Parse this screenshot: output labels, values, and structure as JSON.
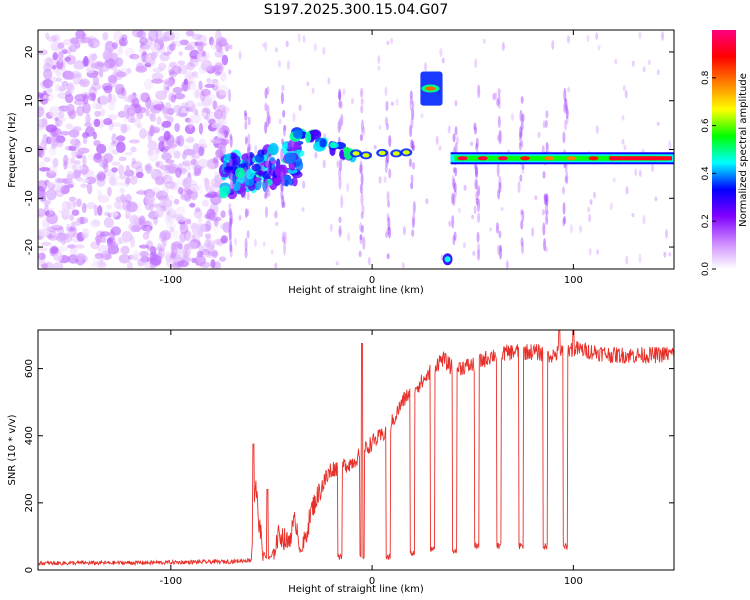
{
  "title": "S197.2025.300.15.04.G07",
  "chart_data": [
    {
      "type": "heatmap",
      "panel": "top",
      "title": "S197.2025.300.15.04.G07",
      "xlabel": "Height of straight line (km)",
      "ylabel": "Frequency (Hz)",
      "xlim": [
        -166,
        150
      ],
      "ylim": [
        -24.5,
        24.5
      ],
      "x_ticks": [
        -100,
        0,
        100
      ],
      "y_ticks": [
        -20,
        -10,
        0,
        10,
        20
      ],
      "colorbar": {
        "label": "Normalized spectral amplitude",
        "range": [
          0,
          1
        ],
        "ticks": [
          "0.0",
          "0.2",
          "0.4",
          "0.6",
          "0.8"
        ],
        "tick_values": [
          0,
          0.2,
          0.4,
          0.6,
          0.8
        ],
        "colors": [
          "#ffffff",
          "#cc88ff",
          "#8000ff",
          "#0000ff",
          "#00ffff",
          "#00ff00",
          "#ffff00",
          "#ff8000",
          "#ff0000",
          "#ff0080"
        ]
      },
      "features": [
        {
          "name": "noise-field",
          "x_range": [
            -166,
            -72
          ],
          "y_range": [
            -24,
            24
          ],
          "amplitude": 0.12
        },
        {
          "name": "onset-cluster",
          "x_range": [
            -74,
            -36
          ],
          "y_range": [
            -8,
            0
          ],
          "amplitude": 0.35
        },
        {
          "name": "descending-track",
          "x": [
            -36,
            -30,
            -24,
            -18,
            -12
          ],
          "y": [
            3.5,
            2.5,
            1.5,
            0.3,
            -0.8
          ],
          "amplitude": 0.45
        },
        {
          "name": "carrier-segments",
          "x": [
            -8,
            -3,
            5,
            12,
            17
          ],
          "y": [
            -0.8,
            -1.2,
            -0.7,
            -0.8,
            -0.6
          ],
          "amplitude": 0.65
        },
        {
          "name": "upper-burst",
          "x": [
            29
          ],
          "y": [
            12.5
          ],
          "amplitude": 0.8
        },
        {
          "name": "lower-burst",
          "x": [
            37.5
          ],
          "y": [
            -22.5
          ],
          "amplitude": 0.35
        },
        {
          "name": "carrier-line",
          "x_range": [
            39,
            150
          ],
          "y": -1.8,
          "amplitude": 0.95
        }
      ]
    },
    {
      "type": "line",
      "panel": "bottom",
      "xlabel": "Height of straight line (km)",
      "ylabel": "SNR (10 * v/v)",
      "xlim": [
        -166,
        150
      ],
      "ylim": [
        0,
        715
      ],
      "x_ticks": [
        -100,
        0,
        100
      ],
      "y_ticks": [
        0,
        200,
        400,
        600
      ],
      "color": "#e8302a",
      "series": [
        {
          "name": "SNR envelope",
          "x": [
            -166,
            -110,
            -70,
            -60,
            -58,
            -56,
            -54,
            -52,
            -50,
            -46,
            -42,
            -38,
            -35,
            -30,
            -25,
            -20,
            -15,
            -10,
            -5,
            0,
            5,
            10,
            15,
            20,
            25,
            30,
            35,
            40,
            50,
            60,
            70,
            80,
            90,
            95,
            100,
            110,
            120,
            130,
            140,
            150
          ],
          "y": [
            20,
            22,
            25,
            30,
            260,
            130,
            50,
            30,
            40,
            110,
            80,
            150,
            50,
            180,
            250,
            300,
            310,
            320,
            350,
            380,
            400,
            440,
            500,
            540,
            560,
            600,
            630,
            600,
            610,
            640,
            650,
            650,
            640,
            650,
            660,
            650,
            640,
            640,
            640,
            645
          ]
        },
        {
          "name": "dropouts",
          "x": [
            -16,
            -5,
            8,
            20,
            30,
            41,
            52,
            63,
            74,
            86,
            96
          ],
          "y": [
            30,
            30,
            30,
            40,
            50,
            50,
            60,
            60,
            60,
            60,
            60
          ]
        },
        {
          "name": "spikes",
          "x": [
            -59,
            -52,
            -5,
            93,
            100
          ],
          "y": [
            375,
            240,
            675,
            715,
            715
          ]
        }
      ]
    }
  ]
}
